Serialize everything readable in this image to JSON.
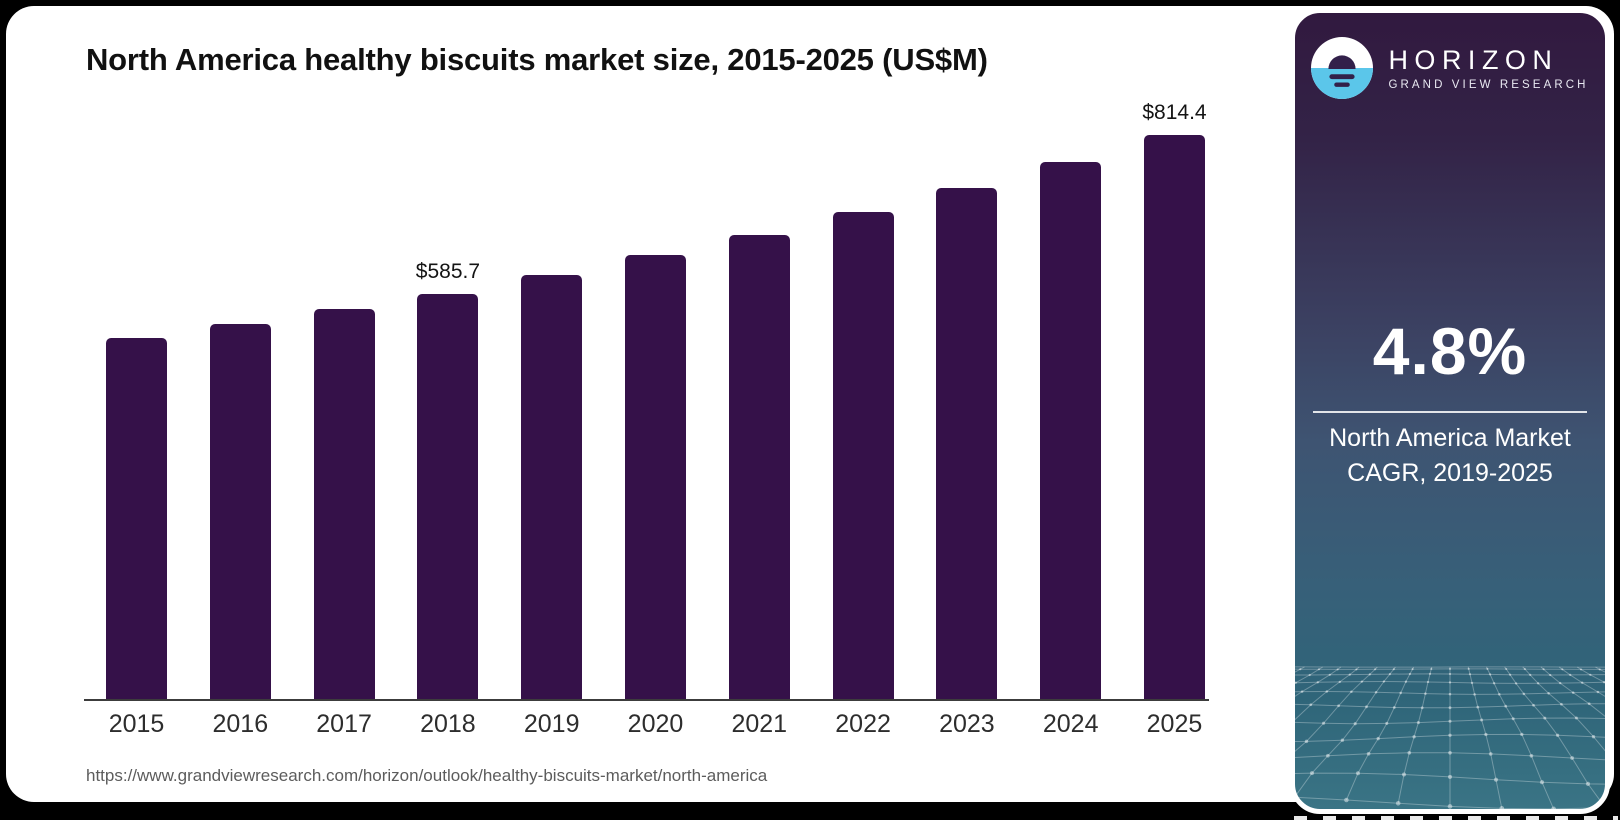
{
  "page": {
    "background_color": "#000000",
    "card_background": "#ffffff"
  },
  "chart": {
    "title": "North America healthy biscuits market size, 2015-2025 (US$M)",
    "source_url": "https://www.grandviewresearch.com/horizon/outlook/healthy-biscuits-market/north-america",
    "bar_color": "#351149",
    "axis_color": "#3c3c3c"
  },
  "chart_data": {
    "type": "bar",
    "title": "North America healthy biscuits market size, 2015-2025 (US$M)",
    "unit": "US$M",
    "categories": [
      "2015",
      "2016",
      "2017",
      "2018",
      "2019",
      "2020",
      "2021",
      "2022",
      "2023",
      "2024",
      "2025"
    ],
    "values": [
      521.3,
      541.8,
      563.2,
      585.7,
      612.0,
      641.0,
      670.5,
      702.8,
      738.6,
      776.0,
      814.4
    ],
    "value_labels": {
      "2018": "$585.7",
      "2025": "$814.4"
    },
    "xlabel": "",
    "ylabel": "",
    "ylim": [
      0,
      860
    ],
    "grid": false,
    "legend": "none",
    "bar_corner_radius": "rounded-top"
  },
  "sidebar": {
    "logo": {
      "brand": "HORIZON",
      "sub_brand": "GRAND VIEW RESEARCH",
      "icon": "horizon-sun-icon",
      "icon_blue": "#5BC6EA",
      "icon_dark": "#32204A"
    },
    "stat_value": "4.8%",
    "stat_label_line1": "North America Market",
    "stat_label_line2": "CAGR, 2019-2025",
    "gradient_top": "#31193F",
    "gradient_mid": "#3E5472",
    "gradient_bottom": "#2F6579"
  }
}
